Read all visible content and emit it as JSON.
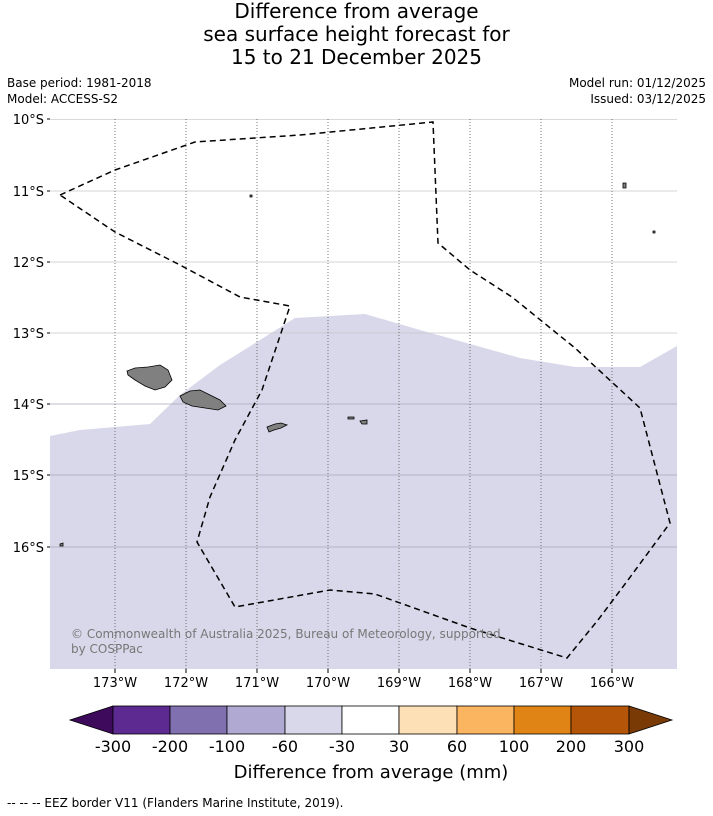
{
  "title": {
    "line1": "Difference from average",
    "line2": "sea surface height forecast for",
    "line3": "15 to 21 December 2025"
  },
  "meta": {
    "base_period": "Base period: 1981-2018",
    "model": "Model: ACCESS-S2",
    "model_run": "Model run: 01/12/2025",
    "issued": "Issued: 03/12/2025"
  },
  "map": {
    "lat_labels": [
      "10°S",
      "11°S",
      "12°S",
      "13°S",
      "14°S",
      "15°S",
      "16°S"
    ],
    "lon_labels": [
      "173°W",
      "172°W",
      "171°W",
      "170°W",
      "169°W",
      "168°W",
      "167°W",
      "166°W"
    ],
    "copyright_line1": "© Commonwealth of Australia 2025, Bureau of Meteorology, supported",
    "copyright_line2": "by COSPPac",
    "colors": {
      "anomaly_fill": "#d8d8ea",
      "land": "#808080",
      "eez_line": "#000000"
    }
  },
  "colorbar": {
    "label": "Difference from average (mm)",
    "ticks": [
      "-300",
      "-200",
      "-100",
      "-60",
      "-30",
      "30",
      "60",
      "100",
      "200",
      "300"
    ],
    "colors": [
      "#3d0a5c",
      "#5c2a90",
      "#8170b0",
      "#b0a9d2",
      "#d8d8ea",
      "#ffffff",
      "#fde0b5",
      "#fbb460",
      "#e08416",
      "#b45508",
      "#7a3a06"
    ]
  },
  "footer": {
    "eez_legend": "--  --  -- EEZ border V11 (Flanders Marine Institute, 2019)."
  }
}
